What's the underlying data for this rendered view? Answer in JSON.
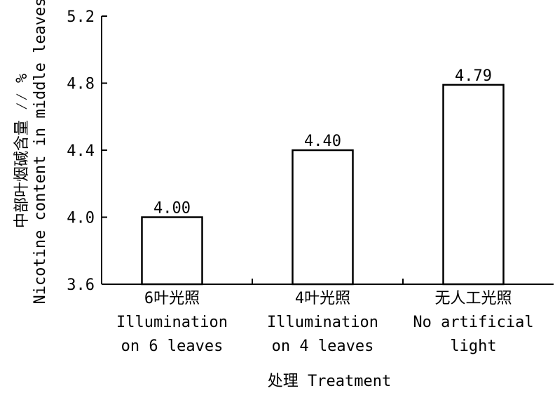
{
  "chart_data": {
    "type": "bar",
    "categories": [
      [
        "6叶光照",
        "Illumination",
        "on 6 leaves"
      ],
      [
        "4叶光照",
        "Illumination",
        "on 4 leaves"
      ],
      [
        "无人工光照",
        "No artificial",
        "light"
      ]
    ],
    "values": [
      4.0,
      4.4,
      4.79
    ],
    "value_labels": [
      "4.00",
      "4.40",
      "4.79"
    ],
    "xlabel": "处理 Treatment",
    "ylabel": [
      "中部叶烟碱含量 ⁄⁄ %",
      "Nicotine content in middle leaves"
    ],
    "ylim": [
      3.6,
      5.2
    ],
    "yticks": [
      3.6,
      4.0,
      4.4,
      4.8,
      5.2
    ],
    "ytick_labels": [
      "3.6",
      "4.0",
      "4.4",
      "4.8",
      "5.2"
    ],
    "grid": false,
    "bar_fill": "#ffffff",
    "bar_stroke": "#000000"
  }
}
